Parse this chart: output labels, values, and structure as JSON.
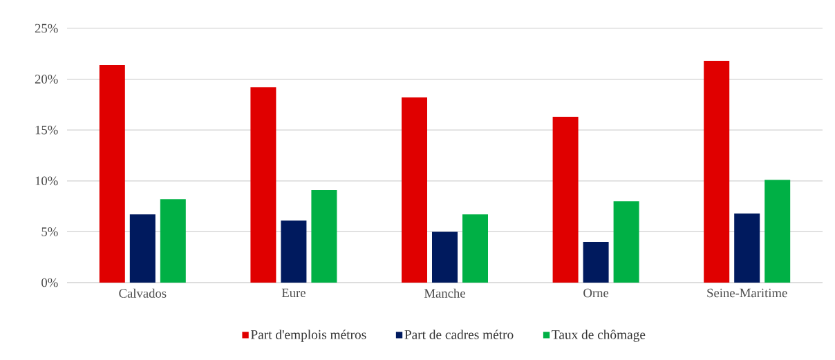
{
  "chart_data": {
    "type": "bar",
    "categories": [
      "Calvados",
      "Eure",
      "Manche",
      "Orne",
      "Seine-Maritime"
    ],
    "series": [
      {
        "name": "Part d'emplois métros",
        "color": "#e00000",
        "values": [
          21.4,
          19.2,
          18.2,
          16.3,
          21.8
        ]
      },
      {
        "name": "Part de cadres métro",
        "color": "#001a5e",
        "values": [
          6.7,
          6.1,
          5.0,
          4.0,
          6.8
        ]
      },
      {
        "name": "Taux de chômage",
        "color": "#00b045",
        "values": [
          8.2,
          9.1,
          6.7,
          8.0,
          10.1
        ]
      }
    ],
    "ylim": [
      0,
      25
    ],
    "yticks": [
      {
        "value": 0,
        "label": "0%"
      },
      {
        "value": 5,
        "label": "5%"
      },
      {
        "value": 10,
        "label": "10%"
      },
      {
        "value": 15,
        "label": "15%"
      },
      {
        "value": 20,
        "label": "20%"
      },
      {
        "value": 25,
        "label": "25%"
      }
    ],
    "grid": "y",
    "legend": "bottom"
  }
}
